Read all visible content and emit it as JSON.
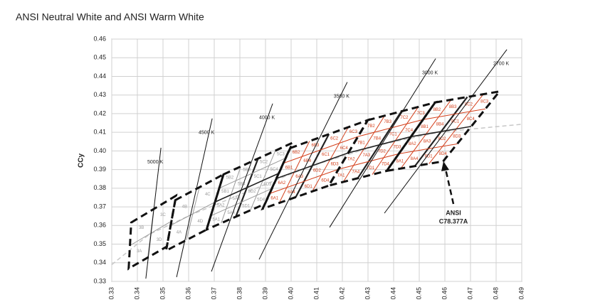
{
  "chart_data": {
    "type": "chromaticity",
    "title": "ANSI Neutral White and ANSI Warm White",
    "ylabel": "CCy",
    "xlim": [
      0.33,
      0.49
    ],
    "ylim": [
      0.33,
      0.46
    ],
    "xticks": [
      0.33,
      0.34,
      0.35,
      0.36,
      0.37,
      0.38,
      0.39,
      {
        "value": 0.4,
        "label": "0.40"
      },
      0.41,
      0.42,
      0.43,
      0.44,
      0.45,
      0.46,
      0.47,
      0.48,
      0.49
    ],
    "yticks": [
      0.33,
      0.34,
      0.35,
      0.36,
      0.37,
      0.38,
      0.39,
      {
        "value": 0.4,
        "label": "0.40"
      },
      0.41,
      0.42,
      0.43,
      0.44,
      0.45,
      0.46
    ],
    "grid": true,
    "locus": {
      "color": "#c8c8c8",
      "x": [
        0.33,
        0.3447,
        0.3611,
        0.3805,
        0.4073,
        0.4338,
        0.4578,
        0.49
      ],
      "y": [
        0.339,
        0.3553,
        0.3658,
        0.3768,
        0.3917,
        0.403,
        0.4101,
        0.4143
      ]
    },
    "bins": [
      {
        "color": "#9a9a9a",
        "x": [
          0.3376,
          0.3551,
          0.3515,
          0.3366
        ],
        "y": [
          0.3616,
          0.376,
          0.3487,
          0.3369
        ],
        "labels": [
          [
            "3B",
            "3C"
          ],
          [
            "3A",
            "3D"
          ]
        ]
      },
      {
        "color": "#9a9a9a",
        "x": [
          0.3548,
          0.3736,
          0.367,
          0.3512
        ],
        "y": [
          0.3736,
          0.3874,
          0.3578,
          0.3465
        ],
        "labels": [
          [
            "4B",
            "4C"
          ],
          [
            "4A",
            "4D"
          ]
        ]
      },
      {
        "color": "#9a9a9a",
        "x": [
          0.3736,
          0.4006,
          0.3898,
          0.367
        ],
        "y": [
          0.3874,
          0.4044,
          0.3716,
          0.3578
        ],
        "labels": [
          [
            "5B2",
            "5B3",
            "5C2",
            "5C3"
          ],
          [
            "5B1",
            "5B4",
            "5C1",
            "5C4"
          ],
          [
            "5A2",
            "5A3",
            "5D2",
            "5D3"
          ],
          [
            "5A1",
            "5A4",
            "5D1",
            "5D4"
          ]
        ]
      },
      {
        "color": "#d4401c",
        "x": [
          0.3996,
          0.4299,
          0.4147,
          0.3889
        ],
        "y": [
          0.4015,
          0.4165,
          0.3814,
          0.369
        ],
        "labels": [
          [
            "6B2",
            "6B3",
            "6C2",
            "6C3"
          ],
          [
            "6B1",
            "6B4",
            "6C1",
            "6C4"
          ],
          [
            "6A2",
            "6A3",
            "6D2",
            "6D3"
          ],
          [
            "6A1",
            "6A4",
            "6D1",
            "6D4"
          ]
        ]
      },
      {
        "color": "#d4401c",
        "x": [
          0.4299,
          0.4562,
          0.4373,
          0.4147
        ],
        "y": [
          0.4165,
          0.426,
          0.3893,
          0.3814
        ],
        "labels": [
          [
            "7B2",
            "7B3",
            "7C2",
            "7C3"
          ],
          [
            "7B1",
            "7B4",
            "7C1",
            "7C4"
          ],
          [
            "7A2",
            "7A3",
            "7D2",
            "7D3"
          ],
          [
            "7A1",
            "7A4",
            "7D1",
            "7D4"
          ]
        ]
      },
      {
        "color": "#d4401c",
        "x": [
          0.4562,
          0.4813,
          0.4593,
          0.4373
        ],
        "y": [
          0.426,
          0.4319,
          0.3944,
          0.3893
        ],
        "labels": [
          [
            "8B2",
            "8B3",
            "8C2",
            "8C3"
          ],
          [
            "8B1",
            "8B4",
            "8C1",
            "8C4"
          ],
          [
            "8A2",
            "8A3",
            "8D2",
            "8D3"
          ],
          [
            "8A1",
            "8A4",
            "8D1",
            "8D4"
          ]
        ]
      }
    ],
    "cct_lines": [
      {
        "label": "5000 K",
        "x": [
          0.3433,
          0.3492
        ],
        "y": [
          0.3315,
          0.4017
        ]
      },
      {
        "label": "4500 K",
        "x": [
          0.3553,
          0.3692
        ],
        "y": [
          0.3323,
          0.4174
        ]
      },
      {
        "label": "4000 K",
        "x": [
          0.3689,
          0.3928
        ],
        "y": [
          0.3353,
          0.4254
        ]
      },
      {
        "label": "3500 K",
        "x": [
          0.3875,
          0.4219
        ],
        "y": [
          0.3418,
          0.4369
        ]
      },
      {
        "label": "3000 K",
        "x": [
          0.415,
          0.4564
        ],
        "y": [
          0.359,
          0.4495
        ]
      },
      {
        "label": "2700 K",
        "x": [
          0.4364,
          0.4842
        ],
        "y": [
          0.3666,
          0.4544
        ]
      }
    ],
    "annotation": [
      "ANSI",
      "C78.377A"
    ]
  }
}
